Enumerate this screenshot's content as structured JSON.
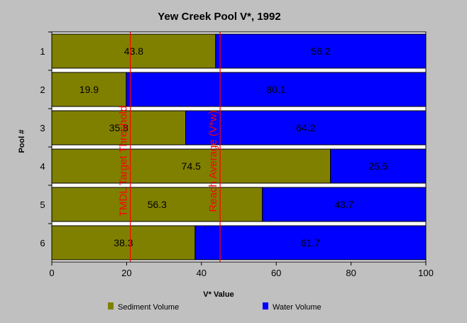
{
  "chart_data": {
    "type": "bar",
    "orientation": "horizontal",
    "stacked": true,
    "title": "Yew Creek Pool V*, 1992",
    "xlabel": "V* Value",
    "ylabel": "Pool #",
    "xlim": [
      0,
      100
    ],
    "x_ticks": [
      "0",
      "20",
      "40",
      "60",
      "80",
      "100"
    ],
    "categories": [
      "1",
      "2",
      "3",
      "4",
      "5",
      "6"
    ],
    "series": [
      {
        "name": "Sediment Volume",
        "color": "#808000",
        "values": [
          43.8,
          19.9,
          35.8,
          74.5,
          56.3,
          38.3
        ]
      },
      {
        "name": "Water Volume",
        "color": "#0000ff",
        "values": [
          56.2,
          80.1,
          64.2,
          25.5,
          43.7,
          61.7
        ]
      }
    ],
    "data_labels": {
      "sediment": [
        "43.8",
        "19.9",
        "35.8",
        "74.5",
        "56.3",
        "38.3"
      ],
      "water": [
        "56.2",
        "80.1",
        "64.2",
        "25.5",
        "43.7",
        "61.7"
      ]
    },
    "reference_lines": [
      {
        "label": "TMDL Target Threshold",
        "value": 21,
        "color": "#ff0000"
      },
      {
        "label": "Reach Average (V*w)",
        "value": 45,
        "color": "#ff0000"
      }
    ],
    "grid": false,
    "legend_position": "bottom"
  }
}
